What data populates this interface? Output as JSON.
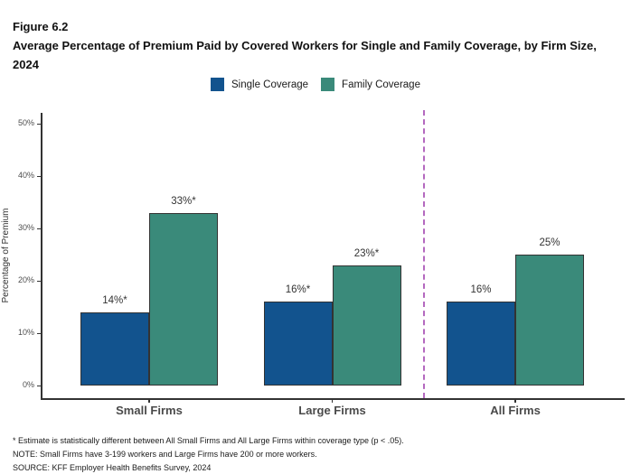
{
  "figure": {
    "label": "Figure 6.2",
    "title": "Average Percentage of Premium Paid by Covered Workers for Single and Family Coverage, by Firm Size, 2024"
  },
  "chart_data": {
    "type": "bar",
    "categories": [
      "Small Firms",
      "Large Firms",
      "All Firms"
    ],
    "series": [
      {
        "name": "Single Coverage",
        "color": "#12538e",
        "values": [
          14,
          16,
          16
        ],
        "labels": [
          "14%*",
          "16%*",
          "16%"
        ]
      },
      {
        "name": "Family Coverage",
        "color": "#3a8a7a",
        "values": [
          33,
          23,
          25
        ],
        "labels": [
          "33%*",
          "23%*",
          "25%"
        ]
      }
    ],
    "title": "Average Percentage of Premium Paid by Covered Workers for Single and Family Coverage, by Firm Size, 2024",
    "xlabel": "",
    "ylabel": "Percentage of Premium",
    "yticks": [
      "0%",
      "10%",
      "20%",
      "30%",
      "40%",
      "50%"
    ],
    "ylim": [
      0,
      52
    ],
    "grid": false,
    "legend_position": "top",
    "separator_after_category": 1,
    "separator_color": "#b469bf",
    "bar_outline_color": "#333333"
  },
  "notes": {
    "footnote": "* Estimate is statistically different between All Small Firms and All Large Firms within coverage type (p < .05).",
    "note": "NOTE: Small Firms have 3-199 workers and Large Firms have 200 or more workers.",
    "source": "SOURCE: KFF Employer Health Benefits Survey, 2024"
  }
}
